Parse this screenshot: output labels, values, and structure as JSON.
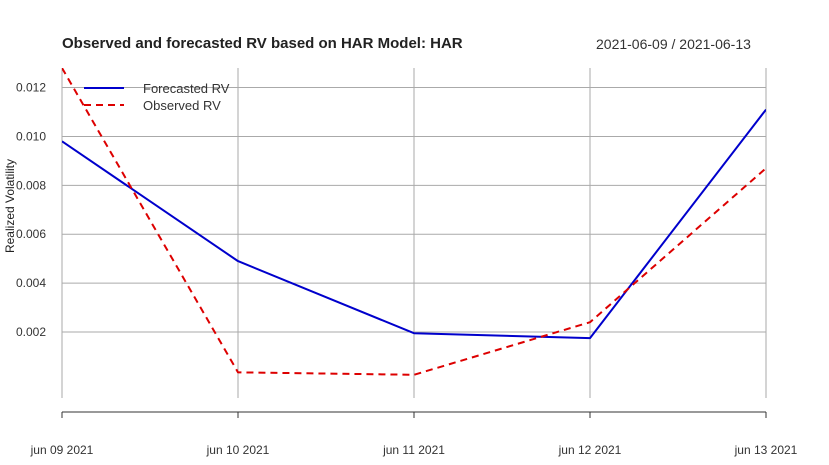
{
  "chart_data": {
    "type": "line",
    "title": "Observed and forecasted RV based on HAR Model: HAR",
    "date_range": "2021-06-09 / 2021-06-13",
    "ylabel": "Realized Volatility",
    "xlabel": "",
    "categories": [
      "jun 09 2021",
      "jun 10 2021",
      "jun 11 2021",
      "jun 12 2021",
      "jun 13 2021"
    ],
    "yticks": [
      0.002,
      0.004,
      0.006,
      0.008,
      0.01,
      0.012
    ],
    "ytick_labels": [
      "0.002",
      "0.004",
      "0.006",
      "0.008",
      "0.010",
      "0.012"
    ],
    "ylim": [
      -0.0007,
      0.0128
    ],
    "grid": true,
    "legend_position": "top-left",
    "series": [
      {
        "name": "Forecasted RV",
        "color": "#0000CC",
        "style": "solid",
        "values": [
          0.0098,
          0.0049,
          0.00195,
          0.00175,
          0.0111
        ]
      },
      {
        "name": "Observed RV",
        "color": "#DD0000",
        "style": "dashed",
        "values": [
          0.0128,
          0.00035,
          0.00025,
          0.0024,
          0.0087
        ]
      }
    ]
  }
}
